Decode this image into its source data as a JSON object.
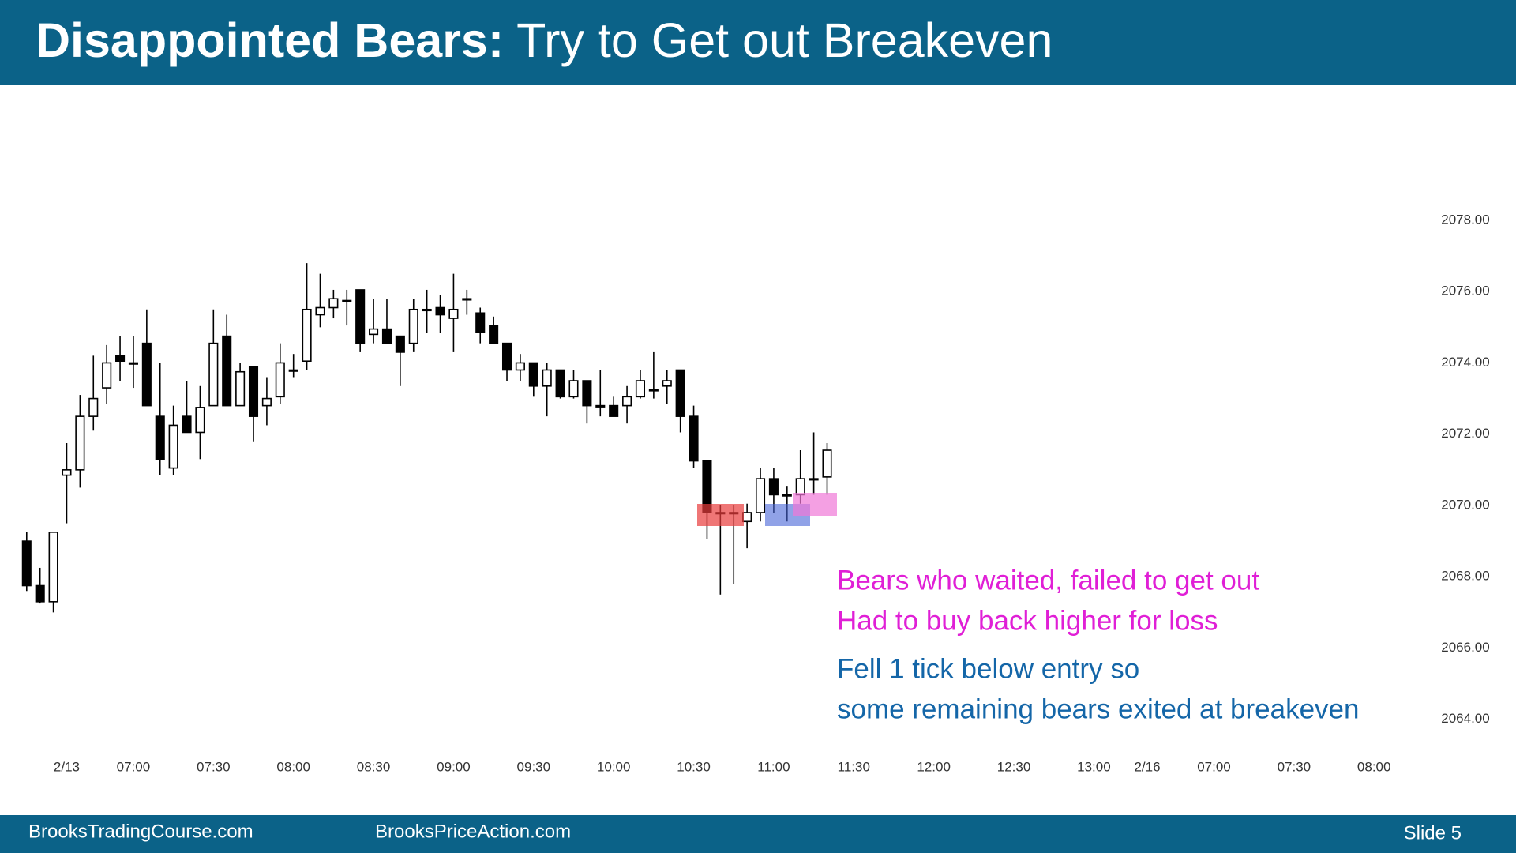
{
  "header": {
    "bold": "Disappointed Bears:",
    "rest": "Try to Get out Breakeven"
  },
  "chart_data": {
    "type": "candlestick",
    "x": [
      0,
      1,
      2,
      3,
      4,
      5,
      6,
      7,
      8,
      9,
      10,
      11,
      12,
      13,
      14,
      15,
      16,
      17,
      18,
      19,
      20,
      21,
      22,
      23,
      24,
      25,
      26,
      27,
      28,
      29,
      30,
      31,
      32,
      33,
      34,
      35,
      36,
      37,
      38,
      39,
      40,
      41,
      42,
      43,
      44,
      45,
      46,
      47,
      48,
      49,
      50,
      51,
      52,
      53,
      54,
      55,
      56,
      57,
      58,
      59,
      60
    ],
    "open": [
      2069.0,
      2067.75,
      2067.3,
      2070.85,
      2071.0,
      2072.5,
      2073.3,
      2074.2,
      2074.0,
      2074.55,
      2072.5,
      2071.05,
      2072.5,
      2072.05,
      2072.8,
      2074.75,
      2072.8,
      2073.9,
      2072.8,
      2073.05,
      2073.8,
      2074.05,
      2075.35,
      2075.55,
      2075.75,
      2076.05,
      2074.8,
      2074.95,
      2074.75,
      2074.55,
      2075.5,
      2075.55,
      2075.25,
      2075.8,
      2075.4,
      2075.05,
      2074.55,
      2073.8,
      2074.0,
      2073.35,
      2073.8,
      2073.05,
      2073.5,
      2072.8,
      2072.8,
      2072.8,
      2073.05,
      2073.25,
      2073.35,
      2073.8,
      2072.5,
      2071.25,
      2069.8,
      2069.8,
      2069.55,
      2069.8,
      2070.75,
      2070.3,
      2070.3,
      2070.75,
      2070.8
    ],
    "high": [
      2069.25,
      2068.25,
      2069.25,
      2071.75,
      2073.1,
      2074.2,
      2074.5,
      2074.75,
      2074.75,
      2075.5,
      2074.0,
      2072.8,
      2073.5,
      2073.35,
      2075.5,
      2075.35,
      2074.0,
      2073.9,
      2073.6,
      2074.55,
      2074.25,
      2076.8,
      2076.5,
      2076.05,
      2076.05,
      2076.05,
      2075.8,
      2075.8,
      2074.75,
      2075.8,
      2076.05,
      2075.9,
      2076.5,
      2076.05,
      2075.55,
      2075.3,
      2074.55,
      2074.25,
      2074.0,
      2074.0,
      2073.8,
      2073.8,
      2073.5,
      2073.8,
      2073.05,
      2073.35,
      2073.8,
      2074.3,
      2073.8,
      2073.8,
      2072.8,
      2071.25,
      2070.0,
      2070.0,
      2070.05,
      2071.05,
      2071.05,
      2070.55,
      2071.55,
      2072.05,
      2071.75
    ],
    "low": [
      2067.6,
      2067.25,
      2067.0,
      2069.5,
      2070.5,
      2072.1,
      2072.85,
      2073.5,
      2073.3,
      2072.8,
      2070.85,
      2070.85,
      2072.05,
      2071.3,
      2072.8,
      2072.8,
      2072.8,
      2071.8,
      2072.25,
      2072.85,
      2073.6,
      2073.8,
      2075.0,
      2075.25,
      2075.05,
      2074.3,
      2074.55,
      2074.55,
      2073.35,
      2074.3,
      2074.85,
      2074.85,
      2074.3,
      2075.35,
      2074.55,
      2074.55,
      2073.5,
      2073.5,
      2073.05,
      2072.5,
      2073.0,
      2073.0,
      2072.3,
      2072.5,
      2072.5,
      2072.3,
      2073.0,
      2073.0,
      2072.85,
      2072.05,
      2071.05,
      2069.05,
      2067.5,
      2067.8,
      2068.8,
      2069.55,
      2069.8,
      2069.55,
      2070.05,
      2070.3,
      2070.3
    ],
    "close": [
      2067.75,
      2067.3,
      2069.25,
      2071.0,
      2072.5,
      2073.0,
      2074.0,
      2074.05,
      2074.0,
      2072.8,
      2071.3,
      2072.25,
      2072.05,
      2072.75,
      2074.55,
      2072.8,
      2073.75,
      2072.5,
      2073.0,
      2074.0,
      2073.8,
      2075.5,
      2075.55,
      2075.8,
      2075.75,
      2074.55,
      2074.95,
      2074.55,
      2074.3,
      2075.5,
      2075.5,
      2075.35,
      2075.5,
      2075.8,
      2074.85,
      2074.55,
      2073.8,
      2074.0,
      2073.35,
      2073.8,
      2073.05,
      2073.5,
      2072.8,
      2072.8,
      2072.5,
      2073.05,
      2073.5,
      2073.25,
      2073.5,
      2072.5,
      2071.25,
      2069.8,
      2069.8,
      2069.8,
      2069.8,
      2070.75,
      2070.3,
      2070.3,
      2070.75,
      2070.75,
      2071.55
    ],
    "up_color": "#ffffff",
    "down_color": "#000000",
    "outline_color": "#000000",
    "xlim": [
      -2,
      103
    ],
    "xticks": [
      {
        "value": 3,
        "label": "2/13"
      },
      {
        "value": 8,
        "label": "07:00"
      },
      {
        "value": 14,
        "label": "07:30"
      },
      {
        "value": 20,
        "label": "08:00"
      },
      {
        "value": 26,
        "label": "08:30"
      },
      {
        "value": 32,
        "label": "09:00"
      },
      {
        "value": 38,
        "label": "09:30"
      },
      {
        "value": 44,
        "label": "10:00"
      },
      {
        "value": 50,
        "label": "10:30"
      },
      {
        "value": 56,
        "label": "11:00"
      },
      {
        "value": 62,
        "label": "11:30"
      },
      {
        "value": 68,
        "label": "12:00"
      },
      {
        "value": 74,
        "label": "12:30"
      },
      {
        "value": 80,
        "label": "13:00"
      },
      {
        "value": 84,
        "label": "2/16"
      },
      {
        "value": 89,
        "label": "07:00"
      },
      {
        "value": 95,
        "label": "07:30"
      },
      {
        "value": 101,
        "label": "08:00"
      }
    ],
    "ylim": [
      2062,
      2081.5
    ],
    "yticks": [
      {
        "value": 2078,
        "label": "2078.00"
      },
      {
        "value": 2076,
        "label": "2076.00"
      },
      {
        "value": 2074,
        "label": "2074.00"
      },
      {
        "value": 2072,
        "label": "2072.00"
      },
      {
        "value": 2070,
        "label": "2070.00"
      },
      {
        "value": 2068,
        "label": "2068.00"
      },
      {
        "value": 2066,
        "label": "2066.00"
      },
      {
        "value": 2064,
        "label": "2064.00"
      }
    ],
    "grid": false,
    "annotations": [
      {
        "text": "Bears who waited, failed to get out",
        "color": "#e01fd6"
      },
      {
        "text": "Had to buy back higher for loss",
        "color": "#e01fd6"
      },
      {
        "text": "Fell 1 tick below entry so",
        "color": "#1466a8"
      },
      {
        "text": "some remaining bears exited at breakeven",
        "color": "#1466a8"
      }
    ]
  },
  "footer": {
    "left": "BrooksTradingCourse.com",
    "center": "BrooksPriceAction.com",
    "slide": "Slide  5"
  }
}
